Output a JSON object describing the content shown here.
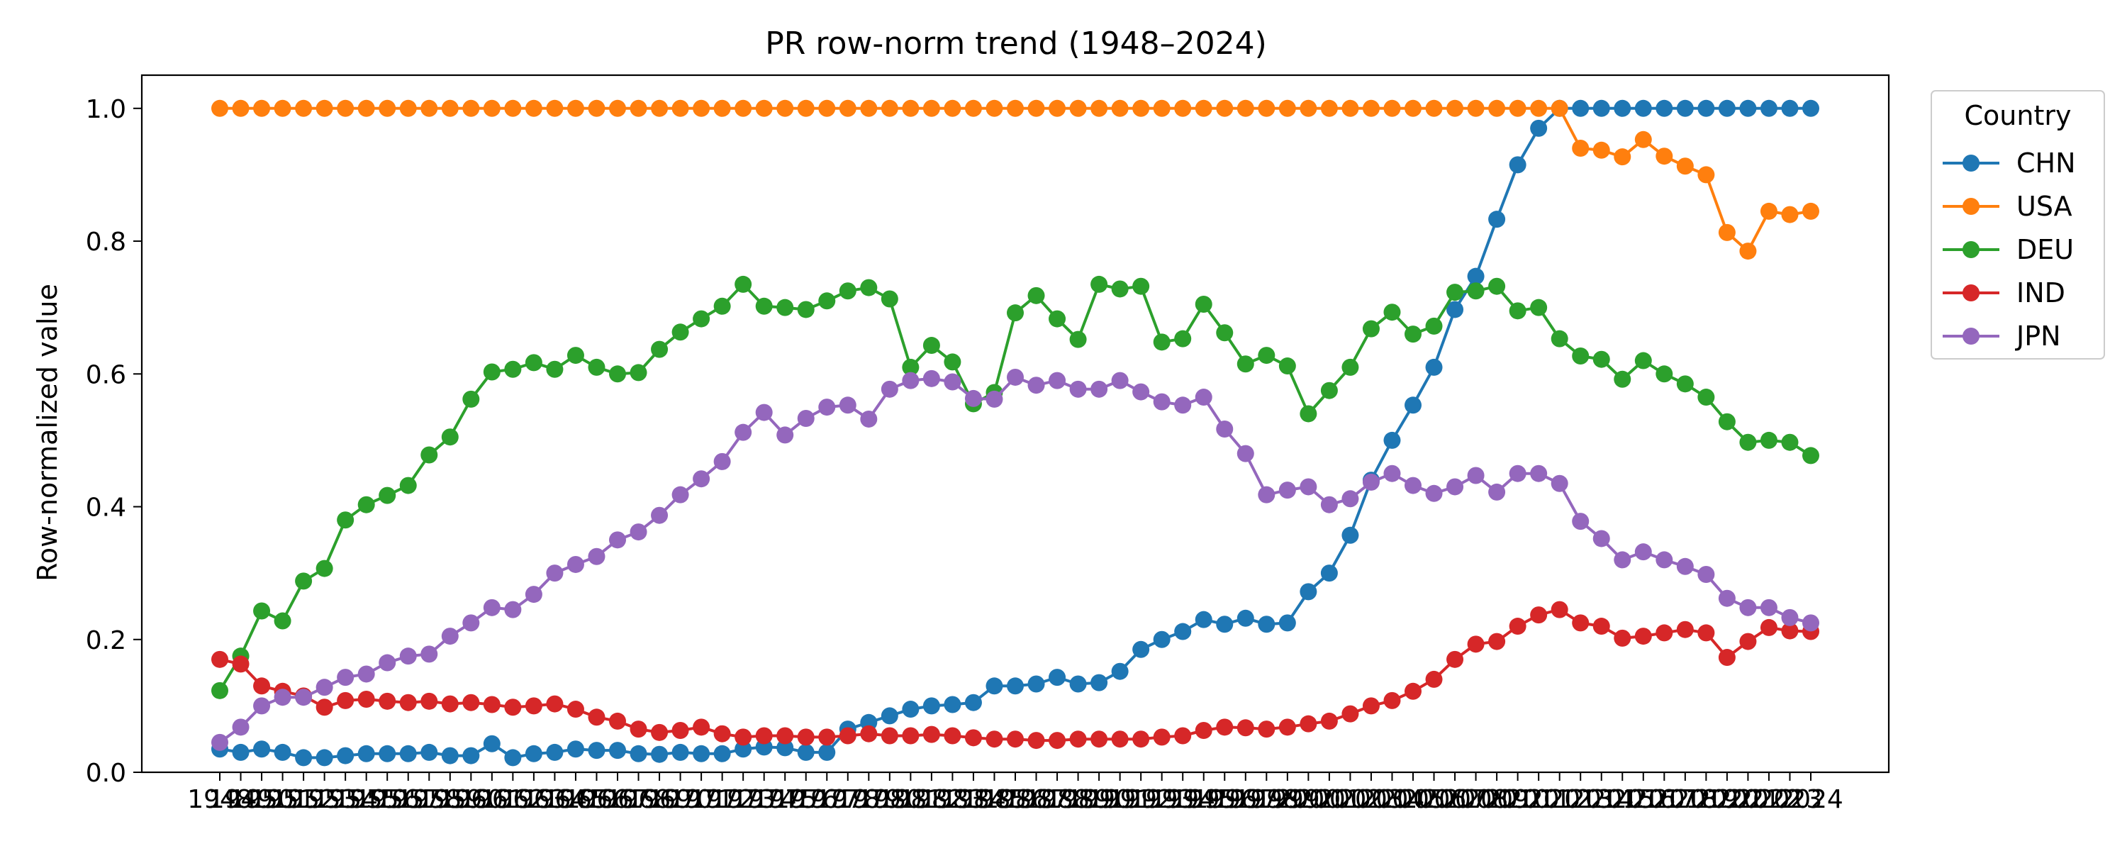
{
  "chart_data": {
    "type": "line",
    "title": "PR row-norm trend (1948–2024)",
    "xlabel": "",
    "ylabel": "Row-normalized value",
    "ylim": [
      0.0,
      1.05
    ],
    "yticks": [
      "0.0",
      "0.2",
      "0.4",
      "0.6",
      "0.8",
      "1.0"
    ],
    "grid": false,
    "legend": {
      "title": "Country",
      "placement": "outside-top-right"
    },
    "x": [
      1948,
      1949,
      1950,
      1951,
      1952,
      1953,
      1954,
      1955,
      1956,
      1957,
      1958,
      1959,
      1960,
      1961,
      1962,
      1963,
      1964,
      1965,
      1966,
      1967,
      1968,
      1969,
      1970,
      1971,
      1972,
      1973,
      1974,
      1975,
      1976,
      1977,
      1978,
      1979,
      1980,
      1981,
      1982,
      1983,
      1984,
      1985,
      1986,
      1987,
      1988,
      1989,
      1990,
      1991,
      1992,
      1993,
      1994,
      1995,
      1996,
      1997,
      1998,
      1999,
      2000,
      2001,
      2002,
      2003,
      2004,
      2005,
      2006,
      2007,
      2008,
      2009,
      2010,
      2011,
      2012,
      2013,
      2014,
      2015,
      2016,
      2017,
      2018,
      2019,
      2020,
      2021,
      2022,
      2023,
      2024
    ],
    "series": [
      {
        "name": "CHN",
        "color": "#1f77b4",
        "values": [
          0.035,
          0.03,
          0.035,
          0.03,
          0.022,
          0.022,
          0.025,
          0.028,
          0.028,
          0.028,
          0.03,
          0.025,
          0.025,
          0.043,
          0.022,
          0.028,
          0.03,
          0.035,
          0.033,
          0.033,
          0.028,
          0.027,
          0.03,
          0.028,
          0.028,
          0.035,
          0.038,
          0.037,
          0.03,
          0.03,
          0.065,
          0.075,
          0.085,
          0.095,
          0.1,
          0.102,
          0.105,
          0.13,
          0.13,
          0.133,
          0.143,
          0.133,
          0.135,
          0.152,
          0.185,
          0.2,
          0.212,
          0.23,
          0.223,
          0.232,
          0.223,
          0.225,
          0.272,
          0.3,
          0.357,
          0.44,
          0.5,
          0.553,
          0.61,
          0.697,
          0.747,
          0.833,
          0.915,
          0.97,
          1.0,
          1.0,
          1.0,
          1.0,
          1.0,
          1.0,
          1.0,
          1.0,
          1.0,
          1.0,
          1.0,
          1.0,
          1.0
        ]
      },
      {
        "name": "USA",
        "color": "#ff7f0e",
        "values": [
          1.0,
          1.0,
          1.0,
          1.0,
          1.0,
          1.0,
          1.0,
          1.0,
          1.0,
          1.0,
          1.0,
          1.0,
          1.0,
          1.0,
          1.0,
          1.0,
          1.0,
          1.0,
          1.0,
          1.0,
          1.0,
          1.0,
          1.0,
          1.0,
          1.0,
          1.0,
          1.0,
          1.0,
          1.0,
          1.0,
          1.0,
          1.0,
          1.0,
          1.0,
          1.0,
          1.0,
          1.0,
          1.0,
          1.0,
          1.0,
          1.0,
          1.0,
          1.0,
          1.0,
          1.0,
          1.0,
          1.0,
          1.0,
          1.0,
          1.0,
          1.0,
          1.0,
          1.0,
          1.0,
          1.0,
          1.0,
          1.0,
          1.0,
          1.0,
          1.0,
          1.0,
          1.0,
          1.0,
          1.0,
          1.0,
          0.94,
          0.937,
          0.927,
          0.953,
          0.928,
          0.913,
          0.9,
          0.813,
          0.785,
          0.845,
          0.84,
          0.845
        ]
      },
      {
        "name": "DEU",
        "color": "#2ca02c",
        "values": [
          0.123,
          0.175,
          0.243,
          0.228,
          0.288,
          0.307,
          0.38,
          0.403,
          0.417,
          0.432,
          0.478,
          0.505,
          0.562,
          0.603,
          0.607,
          0.617,
          0.607,
          0.628,
          0.61,
          0.6,
          0.602,
          0.637,
          0.663,
          0.683,
          0.702,
          0.735,
          0.702,
          0.7,
          0.697,
          0.71,
          0.725,
          0.73,
          0.713,
          0.61,
          0.643,
          0.618,
          0.555,
          0.572,
          0.692,
          0.718,
          0.683,
          0.652,
          0.735,
          0.728,
          0.732,
          0.648,
          0.653,
          0.705,
          0.662,
          0.615,
          0.628,
          0.612,
          0.54,
          0.575,
          0.61,
          0.668,
          0.693,
          0.66,
          0.672,
          0.723,
          0.725,
          0.732,
          0.695,
          0.7,
          0.653,
          0.627,
          0.622,
          0.592,
          0.62,
          0.6,
          0.585,
          0.565,
          0.528,
          0.497,
          0.5,
          0.497,
          0.477
        ]
      },
      {
        "name": "IND",
        "color": "#d62728",
        "values": [
          0.17,
          0.163,
          0.13,
          0.122,
          0.115,
          0.098,
          0.108,
          0.11,
          0.107,
          0.105,
          0.107,
          0.103,
          0.105,
          0.102,
          0.098,
          0.1,
          0.103,
          0.095,
          0.083,
          0.077,
          0.065,
          0.06,
          0.063,
          0.068,
          0.058,
          0.053,
          0.055,
          0.055,
          0.053,
          0.053,
          0.055,
          0.058,
          0.055,
          0.055,
          0.057,
          0.055,
          0.052,
          0.05,
          0.05,
          0.048,
          0.048,
          0.05,
          0.05,
          0.05,
          0.05,
          0.053,
          0.055,
          0.063,
          0.068,
          0.067,
          0.065,
          0.068,
          0.073,
          0.077,
          0.088,
          0.1,
          0.108,
          0.122,
          0.14,
          0.17,
          0.193,
          0.197,
          0.22,
          0.237,
          0.245,
          0.225,
          0.22,
          0.202,
          0.205,
          0.21,
          0.215,
          0.21,
          0.173,
          0.197,
          0.218,
          0.213,
          0.212
        ]
      },
      {
        "name": "JPN",
        "color": "#9467bd",
        "values": [
          0.045,
          0.068,
          0.1,
          0.113,
          0.113,
          0.128,
          0.143,
          0.148,
          0.165,
          0.175,
          0.178,
          0.205,
          0.225,
          0.248,
          0.245,
          0.268,
          0.3,
          0.313,
          0.325,
          0.35,
          0.362,
          0.387,
          0.418,
          0.442,
          0.468,
          0.512,
          0.542,
          0.508,
          0.533,
          0.55,
          0.553,
          0.532,
          0.577,
          0.59,
          0.593,
          0.588,
          0.563,
          0.562,
          0.595,
          0.583,
          0.59,
          0.577,
          0.577,
          0.59,
          0.573,
          0.558,
          0.553,
          0.565,
          0.517,
          0.48,
          0.418,
          0.425,
          0.43,
          0.403,
          0.412,
          0.437,
          0.45,
          0.432,
          0.42,
          0.43,
          0.447,
          0.422,
          0.45,
          0.45,
          0.435,
          0.378,
          0.352,
          0.32,
          0.332,
          0.32,
          0.31,
          0.298,
          0.262,
          0.248,
          0.248,
          0.233,
          0.225
        ]
      }
    ]
  }
}
